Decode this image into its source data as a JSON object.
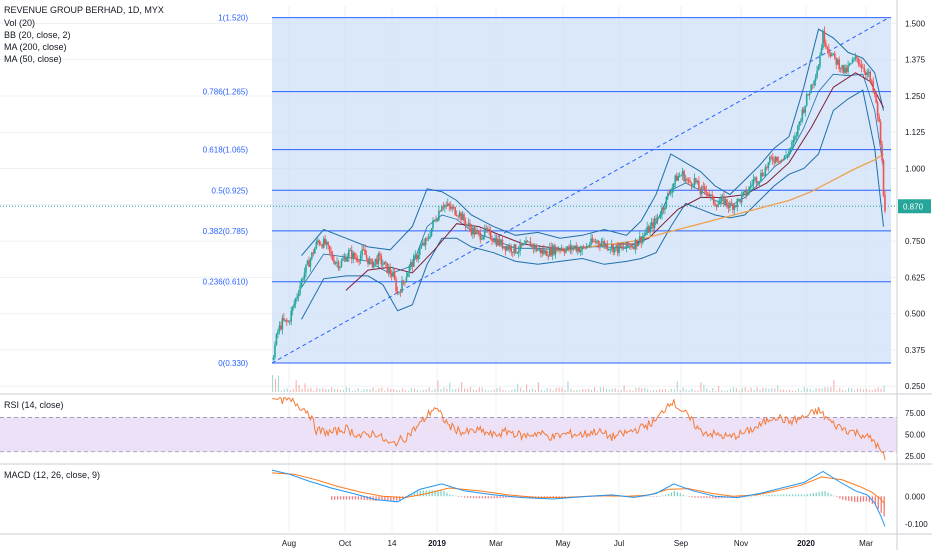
{
  "legend": {
    "symbol": "REVENUE GROUP BERHAD, 1D, MYX",
    "vol": "Vol (20)",
    "bb": "BB (20, close, 2)",
    "ma200": "MA (200, close)",
    "ma50": "MA (50, close)",
    "rsi": "RSI (14, close)",
    "macd": "MACD (12, 26, close, 9)"
  },
  "colors": {
    "fib_line": "#2962ff",
    "fib_zone": "#cfe0f8",
    "bb": "#1e6fa8",
    "ma200": "#f0a04b",
    "ma50": "#7b1f3a",
    "candle_up": "#26a69a",
    "candle_down": "#ef5350",
    "rsi_line": "#f57c3a",
    "rsi_band": "#ece1f7",
    "macd_line": "#2196f3",
    "signal_line": "#ff7a1a",
    "last_price": "#26a69a"
  },
  "chart_data": [
    {
      "type": "candlestick",
      "title": "REVENUE GROUP BERHAD, 1D, MYX",
      "x_ticks": [
        "Aug",
        "Oct",
        "14",
        "2019",
        "Mar",
        "May",
        "Jul",
        "Sep",
        "Nov",
        "2020",
        "Mar"
      ],
      "y_ticks": [
        "1.500",
        "1.375",
        "1.250",
        "1.125",
        "1.000",
        "0.875",
        "0.750",
        "0.625",
        "0.500",
        "0.375",
        "0.250"
      ],
      "ylim": [
        0.23,
        1.56
      ],
      "last_price": "0.870",
      "last_price_value": 0.87,
      "fib_levels": [
        {
          "label": "1(1.520)",
          "value": 1.52
        },
        {
          "label": "0.786(1.265)",
          "value": 1.265
        },
        {
          "label": "0.618(1.065)",
          "value": 1.065
        },
        {
          "label": "0.5(0.925)",
          "value": 0.925
        },
        {
          "label": "0.382(0.785)",
          "value": 0.785
        },
        {
          "label": "0.236(0.610)",
          "value": 0.61
        },
        {
          "label": "0(0.330)",
          "value": 0.33
        }
      ],
      "close_path": [
        [
          0,
          0.34
        ],
        [
          4,
          0.44
        ],
        [
          7,
          0.47
        ],
        [
          11,
          0.47
        ],
        [
          16,
          0.55
        ],
        [
          21,
          0.63
        ],
        [
          26,
          0.69
        ],
        [
          31,
          0.75
        ],
        [
          36,
          0.74
        ],
        [
          41,
          0.69
        ],
        [
          46,
          0.67
        ],
        [
          52,
          0.71
        ],
        [
          57,
          0.69
        ],
        [
          62,
          0.71
        ],
        [
          67,
          0.67
        ],
        [
          72,
          0.69
        ],
        [
          77,
          0.66
        ],
        [
          82,
          0.63
        ],
        [
          85,
          0.57
        ],
        [
          89,
          0.61
        ],
        [
          93,
          0.66
        ],
        [
          97,
          0.69
        ],
        [
          101,
          0.73
        ],
        [
          105,
          0.75
        ],
        [
          109,
          0.81
        ],
        [
          112,
          0.84
        ],
        [
          115,
          0.88
        ],
        [
          118,
          0.87
        ],
        [
          122,
          0.86
        ],
        [
          126,
          0.85
        ],
        [
          130,
          0.82
        ],
        [
          135,
          0.79
        ],
        [
          140,
          0.77
        ],
        [
          145,
          0.78
        ],
        [
          150,
          0.76
        ],
        [
          155,
          0.74
        ],
        [
          160,
          0.73
        ],
        [
          165,
          0.72
        ],
        [
          170,
          0.73
        ],
        [
          175,
          0.74
        ],
        [
          180,
          0.72
        ],
        [
          185,
          0.71
        ],
        [
          190,
          0.72
        ],
        [
          195,
          0.73
        ],
        [
          200,
          0.72
        ],
        [
          205,
          0.73
        ],
        [
          210,
          0.72
        ],
        [
          215,
          0.74
        ],
        [
          220,
          0.75
        ],
        [
          225,
          0.74
        ],
        [
          230,
          0.73
        ],
        [
          235,
          0.72
        ],
        [
          240,
          0.73
        ],
        [
          245,
          0.74
        ],
        [
          250,
          0.76
        ],
        [
          255,
          0.79
        ],
        [
          260,
          0.82
        ],
        [
          265,
          0.87
        ],
        [
          270,
          0.93
        ],
        [
          274,
          0.97
        ],
        [
          278,
          0.98
        ],
        [
          282,
          0.95
        ],
        [
          286,
          0.96
        ],
        [
          290,
          0.92
        ],
        [
          294,
          0.93
        ],
        [
          298,
          0.89
        ],
        [
          302,
          0.88
        ],
        [
          306,
          0.89
        ],
        [
          310,
          0.87
        ],
        [
          314,
          0.88
        ],
        [
          318,
          0.9
        ],
        [
          322,
          0.92
        ],
        [
          326,
          0.96
        ],
        [
          330,
          0.97
        ],
        [
          334,
          1.0
        ],
        [
          338,
          1.03
        ],
        [
          342,
          1.04
        ],
        [
          346,
          1.03
        ],
        [
          350,
          1.06
        ],
        [
          354,
          1.1
        ],
        [
          358,
          1.18
        ],
        [
          362,
          1.24
        ],
        [
          366,
          1.3
        ],
        [
          370,
          1.36
        ],
        [
          373,
          1.46
        ],
        [
          376,
          1.42
        ],
        [
          380,
          1.38
        ],
        [
          384,
          1.36
        ],
        [
          388,
          1.33
        ],
        [
          392,
          1.36
        ],
        [
          396,
          1.38
        ],
        [
          400,
          1.35
        ],
        [
          404,
          1.32
        ],
        [
          408,
          1.25
        ],
        [
          411,
          1.15
        ],
        [
          413,
          1.02
        ],
        [
          414,
          0.92
        ],
        [
          415,
          0.87
        ]
      ],
      "bb_upper": [
        [
          20,
          0.7
        ],
        [
          35,
          0.79
        ],
        [
          50,
          0.76
        ],
        [
          65,
          0.73
        ],
        [
          80,
          0.72
        ],
        [
          95,
          0.8
        ],
        [
          105,
          0.93
        ],
        [
          115,
          0.92
        ],
        [
          125,
          0.89
        ],
        [
          135,
          0.84
        ],
        [
          150,
          0.8
        ],
        [
          165,
          0.77
        ],
        [
          180,
          0.78
        ],
        [
          195,
          0.76
        ],
        [
          210,
          0.77
        ],
        [
          225,
          0.79
        ],
        [
          240,
          0.77
        ],
        [
          250,
          0.82
        ],
        [
          260,
          0.91
        ],
        [
          270,
          1.05
        ],
        [
          280,
          1.02
        ],
        [
          290,
          0.99
        ],
        [
          300,
          0.94
        ],
        [
          310,
          0.91
        ],
        [
          320,
          0.96
        ],
        [
          330,
          1.01
        ],
        [
          340,
          1.07
        ],
        [
          350,
          1.11
        ],
        [
          360,
          1.28
        ],
        [
          370,
          1.48
        ],
        [
          380,
          1.45
        ],
        [
          390,
          1.4
        ],
        [
          400,
          1.38
        ],
        [
          408,
          1.33
        ],
        [
          414,
          1.2
        ]
      ],
      "bb_lower": [
        [
          20,
          0.48
        ],
        [
          35,
          0.62
        ],
        [
          50,
          0.63
        ],
        [
          65,
          0.63
        ],
        [
          75,
          0.6
        ],
        [
          85,
          0.51
        ],
        [
          95,
          0.53
        ],
        [
          105,
          0.67
        ],
        [
          115,
          0.76
        ],
        [
          125,
          0.76
        ],
        [
          135,
          0.73
        ],
        [
          150,
          0.71
        ],
        [
          165,
          0.68
        ],
        [
          180,
          0.67
        ],
        [
          195,
          0.68
        ],
        [
          210,
          0.69
        ],
        [
          225,
          0.67
        ],
        [
          240,
          0.68
        ],
        [
          250,
          0.69
        ],
        [
          260,
          0.71
        ],
        [
          270,
          0.8
        ],
        [
          280,
          0.88
        ],
        [
          290,
          0.86
        ],
        [
          300,
          0.84
        ],
        [
          310,
          0.83
        ],
        [
          320,
          0.84
        ],
        [
          330,
          0.89
        ],
        [
          340,
          0.94
        ],
        [
          350,
          0.98
        ],
        [
          360,
          1.0
        ],
        [
          370,
          1.05
        ],
        [
          380,
          1.2
        ],
        [
          390,
          1.24
        ],
        [
          400,
          1.27
        ],
        [
          408,
          1.07
        ],
        [
          414,
          0.8
        ]
      ],
      "ma50": [
        [
          50,
          0.58
        ],
        [
          65,
          0.65
        ],
        [
          80,
          0.66
        ],
        [
          95,
          0.64
        ],
        [
          110,
          0.72
        ],
        [
          125,
          0.81
        ],
        [
          140,
          0.8
        ],
        [
          155,
          0.77
        ],
        [
          170,
          0.74
        ],
        [
          185,
          0.73
        ],
        [
          200,
          0.72
        ],
        [
          215,
          0.73
        ],
        [
          230,
          0.74
        ],
        [
          245,
          0.74
        ],
        [
          255,
          0.76
        ],
        [
          265,
          0.81
        ],
        [
          275,
          0.86
        ],
        [
          290,
          0.9
        ],
        [
          305,
          0.9
        ],
        [
          320,
          0.91
        ],
        [
          335,
          0.95
        ],
        [
          350,
          1.02
        ],
        [
          365,
          1.14
        ],
        [
          380,
          1.28
        ],
        [
          395,
          1.33
        ],
        [
          405,
          1.3
        ],
        [
          414,
          1.21
        ]
      ],
      "ma200": [
        [
          185,
          0.71
        ],
        [
          200,
          0.72
        ],
        [
          215,
          0.73
        ],
        [
          230,
          0.74
        ],
        [
          245,
          0.75
        ],
        [
          260,
          0.77
        ],
        [
          275,
          0.79
        ],
        [
          290,
          0.81
        ],
        [
          305,
          0.83
        ],
        [
          320,
          0.85
        ],
        [
          335,
          0.87
        ],
        [
          350,
          0.89
        ],
        [
          365,
          0.92
        ],
        [
          380,
          0.96
        ],
        [
          395,
          1.0
        ],
        [
          408,
          1.03
        ],
        [
          414,
          1.05
        ]
      ]
    },
    {
      "type": "line",
      "title": "RSI (14, close)",
      "y_ticks": [
        "75.00",
        "50.00",
        "25.00"
      ],
      "ylim": [
        18,
        95
      ],
      "band": [
        30,
        70
      ],
      "rsi": [
        [
          0,
          92
        ],
        [
          8,
          90
        ],
        [
          15,
          88
        ],
        [
          25,
          76
        ],
        [
          30,
          55
        ],
        [
          40,
          52
        ],
        [
          50,
          57
        ],
        [
          60,
          48
        ],
        [
          70,
          52
        ],
        [
          80,
          38
        ],
        [
          90,
          46
        ],
        [
          100,
          62
        ],
        [
          110,
          82
        ],
        [
          120,
          60
        ],
        [
          130,
          52
        ],
        [
          140,
          55
        ],
        [
          150,
          49
        ],
        [
          160,
          54
        ],
        [
          170,
          48
        ],
        [
          180,
          52
        ],
        [
          190,
          47
        ],
        [
          200,
          51
        ],
        [
          210,
          50
        ],
        [
          220,
          54
        ],
        [
          230,
          47
        ],
        [
          240,
          52
        ],
        [
          250,
          58
        ],
        [
          260,
          66
        ],
        [
          270,
          90
        ],
        [
          280,
          74
        ],
        [
          290,
          54
        ],
        [
          300,
          50
        ],
        [
          310,
          47
        ],
        [
          320,
          52
        ],
        [
          330,
          60
        ],
        [
          340,
          72
        ],
        [
          350,
          65
        ],
        [
          360,
          70
        ],
        [
          370,
          78
        ],
        [
          380,
          62
        ],
        [
          390,
          55
        ],
        [
          400,
          50
        ],
        [
          408,
          42
        ],
        [
          412,
          30
        ],
        [
          415,
          22
        ]
      ]
    },
    {
      "type": "line",
      "title": "MACD (12, 26, close, 9)",
      "y_ticks": [
        "0.000",
        "-0.100"
      ],
      "ylim": [
        -0.13,
        0.11
      ],
      "macd": [
        [
          0,
          0.095
        ],
        [
          12,
          0.08
        ],
        [
          25,
          0.055
        ],
        [
          40,
          0.03
        ],
        [
          55,
          0.01
        ],
        [
          70,
          -0.012
        ],
        [
          85,
          -0.02
        ],
        [
          100,
          0.025
        ],
        [
          115,
          0.045
        ],
        [
          130,
          0.02
        ],
        [
          150,
          0.005
        ],
        [
          170,
          -0.005
        ],
        [
          190,
          -0.01
        ],
        [
          210,
          -0.002
        ],
        [
          230,
          0.005
        ],
        [
          245,
          -0.004
        ],
        [
          260,
          0.01
        ],
        [
          272,
          0.045
        ],
        [
          285,
          0.02
        ],
        [
          300,
          0.0
        ],
        [
          315,
          -0.005
        ],
        [
          330,
          0.01
        ],
        [
          345,
          0.03
        ],
        [
          360,
          0.05
        ],
        [
          373,
          0.09
        ],
        [
          385,
          0.05
        ],
        [
          395,
          0.02
        ],
        [
          403,
          0.005
        ],
        [
          408,
          -0.025
        ],
        [
          412,
          -0.07
        ],
        [
          415,
          -0.11
        ]
      ],
      "signal": [
        [
          0,
          0.085
        ],
        [
          15,
          0.08
        ],
        [
          30,
          0.06
        ],
        [
          45,
          0.035
        ],
        [
          60,
          0.015
        ],
        [
          75,
          0.0
        ],
        [
          90,
          -0.005
        ],
        [
          105,
          0.01
        ],
        [
          120,
          0.03
        ],
        [
          140,
          0.02
        ],
        [
          160,
          0.005
        ],
        [
          180,
          -0.005
        ],
        [
          200,
          -0.004
        ],
        [
          220,
          0.002
        ],
        [
          240,
          0.0
        ],
        [
          255,
          0.004
        ],
        [
          268,
          0.025
        ],
        [
          282,
          0.028
        ],
        [
          298,
          0.01
        ],
        [
          312,
          0.0
        ],
        [
          328,
          0.005
        ],
        [
          342,
          0.02
        ],
        [
          358,
          0.04
        ],
        [
          372,
          0.07
        ],
        [
          386,
          0.06
        ],
        [
          398,
          0.035
        ],
        [
          406,
          0.015
        ],
        [
          412,
          -0.01
        ],
        [
          415,
          -0.03
        ]
      ]
    }
  ]
}
